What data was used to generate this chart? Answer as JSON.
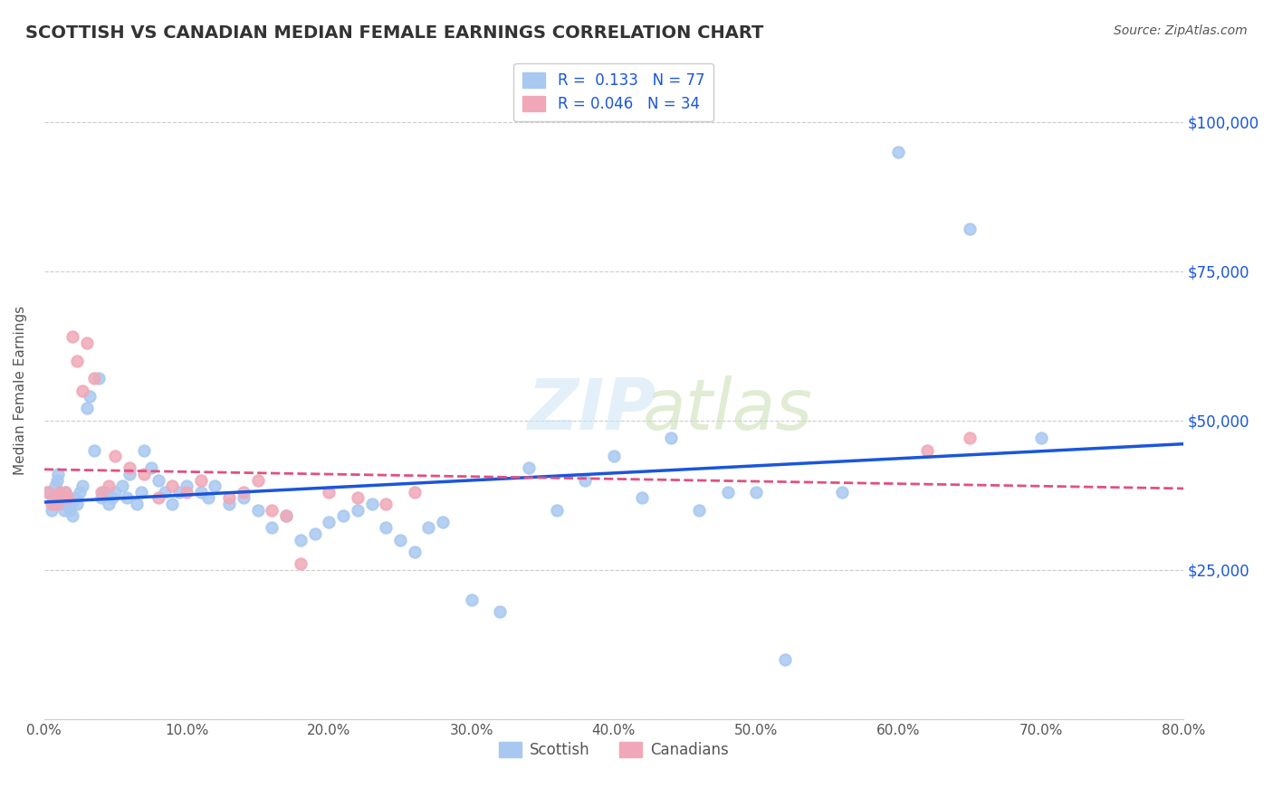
{
  "title": "SCOTTISH VS CANADIAN MEDIAN FEMALE EARNINGS CORRELATION CHART",
  "source": "Source: ZipAtlas.com",
  "xlabel": "",
  "ylabel": "Median Female Earnings",
  "xlim": [
    0.0,
    0.8
  ],
  "ylim": [
    0,
    110000
  ],
  "yticks": [
    0,
    25000,
    50000,
    75000,
    100000
  ],
  "ytick_labels": [
    "",
    "$25,000",
    "$50,000",
    "$75,000",
    "$100,000"
  ],
  "xticks": [
    0.0,
    0.1,
    0.2,
    0.3,
    0.4,
    0.5,
    0.6,
    0.7,
    0.8
  ],
  "xtick_labels": [
    "0.0%",
    "10.0%",
    "20.0%",
    "30.0%",
    "40.0%",
    "50.0%",
    "60.0%",
    "70.0%",
    "80.0%"
  ],
  "scottish_color": "#a8c8f0",
  "canadian_color": "#f0a8b8",
  "regression_blue": "#1a56db",
  "regression_pink": "#e05080",
  "legend_R_scottish": "0.133",
  "legend_N_scottish": "77",
  "legend_R_canadian": "0.046",
  "legend_N_canadian": "34",
  "background_color": "#ffffff",
  "grid_color": "#cccccc",
  "axis_label_color": "#1a56db",
  "title_color": "#333333",
  "scottish_x": [
    0.002,
    0.005,
    0.006,
    0.007,
    0.008,
    0.009,
    0.01,
    0.011,
    0.012,
    0.013,
    0.014,
    0.015,
    0.016,
    0.017,
    0.018,
    0.019,
    0.02,
    0.022,
    0.023,
    0.025,
    0.027,
    0.03,
    0.032,
    0.035,
    0.038,
    0.04,
    0.042,
    0.045,
    0.048,
    0.05,
    0.055,
    0.058,
    0.06,
    0.065,
    0.068,
    0.07,
    0.075,
    0.08,
    0.085,
    0.09,
    0.095,
    0.1,
    0.11,
    0.115,
    0.12,
    0.13,
    0.14,
    0.15,
    0.16,
    0.17,
    0.18,
    0.19,
    0.2,
    0.21,
    0.22,
    0.23,
    0.24,
    0.25,
    0.26,
    0.27,
    0.28,
    0.3,
    0.32,
    0.34,
    0.36,
    0.38,
    0.4,
    0.42,
    0.44,
    0.46,
    0.48,
    0.5,
    0.52,
    0.56,
    0.6,
    0.65,
    0.7
  ],
  "scottish_y": [
    38000,
    35000,
    37000,
    36000,
    39000,
    40000,
    41000,
    38000,
    36000,
    37000,
    35000,
    38000,
    36000,
    37000,
    35000,
    36000,
    34000,
    37000,
    36000,
    38000,
    39000,
    52000,
    54000,
    45000,
    57000,
    37000,
    38000,
    36000,
    37000,
    38000,
    39000,
    37000,
    41000,
    36000,
    38000,
    45000,
    42000,
    40000,
    38000,
    36000,
    38000,
    39000,
    38000,
    37000,
    39000,
    36000,
    37000,
    35000,
    32000,
    34000,
    30000,
    31000,
    33000,
    34000,
    35000,
    36000,
    32000,
    30000,
    28000,
    32000,
    33000,
    20000,
    18000,
    42000,
    35000,
    40000,
    44000,
    37000,
    47000,
    35000,
    38000,
    38000,
    10000,
    38000,
    95000,
    82000,
    47000
  ],
  "canadian_x": [
    0.003,
    0.005,
    0.007,
    0.009,
    0.011,
    0.013,
    0.015,
    0.017,
    0.02,
    0.023,
    0.027,
    0.03,
    0.035,
    0.04,
    0.045,
    0.05,
    0.06,
    0.07,
    0.08,
    0.09,
    0.1,
    0.11,
    0.13,
    0.14,
    0.15,
    0.16,
    0.17,
    0.18,
    0.2,
    0.22,
    0.24,
    0.26,
    0.62,
    0.65
  ],
  "canadian_y": [
    38000,
    36000,
    37000,
    36000,
    38000,
    37000,
    38000,
    37000,
    64000,
    60000,
    55000,
    63000,
    57000,
    38000,
    39000,
    44000,
    42000,
    41000,
    37000,
    39000,
    38000,
    40000,
    37000,
    38000,
    40000,
    35000,
    34000,
    26000,
    38000,
    37000,
    36000,
    38000,
    45000,
    47000
  ]
}
